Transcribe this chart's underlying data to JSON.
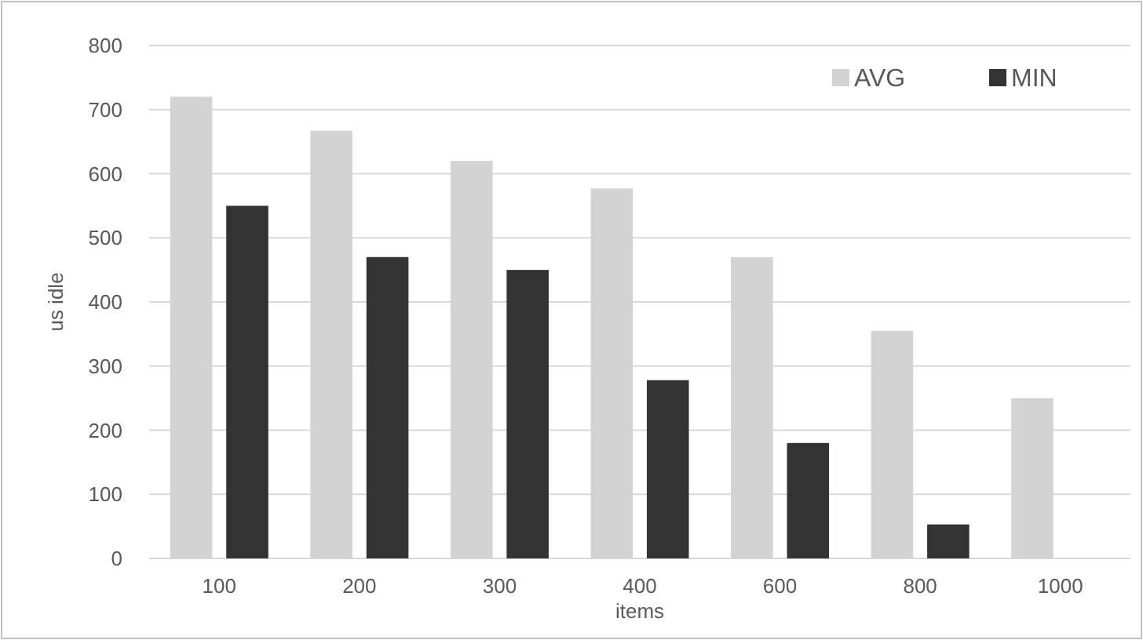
{
  "chart_data": {
    "type": "bar",
    "xlabel": "items",
    "ylabel": "us idle",
    "categories": [
      "100",
      "200",
      "300",
      "400",
      "600",
      "800",
      "1000"
    ],
    "series": [
      {
        "name": "AVG",
        "color": "#d3d3d3",
        "values": [
          720,
          667,
          620,
          577,
          470,
          355,
          250
        ]
      },
      {
        "name": "MIN",
        "color": "#333333",
        "values": [
          550,
          470,
          450,
          278,
          180,
          53,
          null
        ]
      }
    ],
    "ylim": [
      0,
      800
    ],
    "yticks": [
      0,
      100,
      200,
      300,
      400,
      500,
      600,
      700,
      800
    ],
    "grid": "y",
    "legend": "top right"
  }
}
